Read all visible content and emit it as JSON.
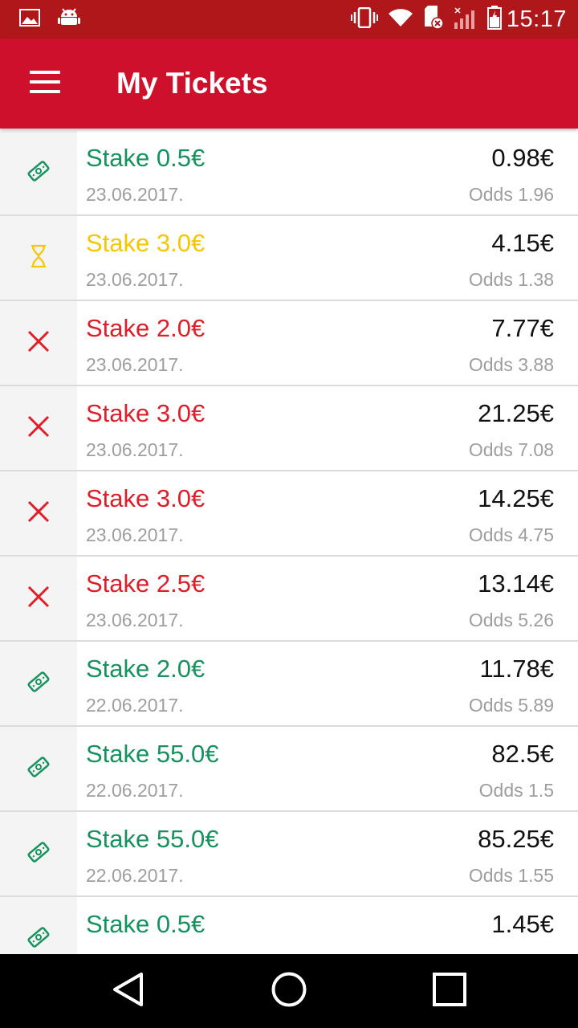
{
  "status_bar": {
    "time": "15:17",
    "icons": [
      "image-icon",
      "android-icon",
      "vibrate-icon",
      "wifi-icon",
      "sd-card-icon",
      "signal-icon",
      "battery-icon"
    ],
    "background": "#b0171a"
  },
  "app_bar": {
    "title": "My Tickets",
    "menu_icon": "hamburger-menu-icon",
    "background": "#cf102d"
  },
  "colors": {
    "won": "#16925f",
    "pending": "#f7c600",
    "lost": "#e01e2a",
    "secondary_text": "#9e9e9e"
  },
  "tickets": [
    {
      "status": "won",
      "icon": "ticket-icon",
      "stake": "Stake 0.5€",
      "date": "23.06.2017.",
      "payout": "0.98€",
      "odds": "Odds 1.96"
    },
    {
      "status": "pending",
      "icon": "hourglass-icon",
      "stake": "Stake 3.0€",
      "date": "23.06.2017.",
      "payout": "4.15€",
      "odds": "Odds 1.38"
    },
    {
      "status": "lost",
      "icon": "cross-icon",
      "stake": "Stake 2.0€",
      "date": "23.06.2017.",
      "payout": "7.77€",
      "odds": "Odds 3.88"
    },
    {
      "status": "lost",
      "icon": "cross-icon",
      "stake": "Stake 3.0€",
      "date": "23.06.2017.",
      "payout": "21.25€",
      "odds": "Odds 7.08"
    },
    {
      "status": "lost",
      "icon": "cross-icon",
      "stake": "Stake 3.0€",
      "date": "23.06.2017.",
      "payout": "14.25€",
      "odds": "Odds 4.75"
    },
    {
      "status": "lost",
      "icon": "cross-icon",
      "stake": "Stake 2.5€",
      "date": "23.06.2017.",
      "payout": "13.14€",
      "odds": "Odds 5.26"
    },
    {
      "status": "won",
      "icon": "ticket-icon",
      "stake": "Stake 2.0€",
      "date": "22.06.2017.",
      "payout": "11.78€",
      "odds": "Odds 5.89"
    },
    {
      "status": "won",
      "icon": "ticket-icon",
      "stake": "Stake 55.0€",
      "date": "22.06.2017.",
      "payout": "82.5€",
      "odds": "Odds 1.5"
    },
    {
      "status": "won",
      "icon": "ticket-icon",
      "stake": "Stake 55.0€",
      "date": "22.06.2017.",
      "payout": "85.25€",
      "odds": "Odds 1.55"
    },
    {
      "status": "won",
      "icon": "ticket-icon",
      "stake": "Stake 0.5€",
      "date": "",
      "payout": "1.45€",
      "odds": ""
    }
  ],
  "nav_bar": {
    "buttons": [
      "back-icon",
      "home-icon",
      "recents-icon"
    ]
  }
}
